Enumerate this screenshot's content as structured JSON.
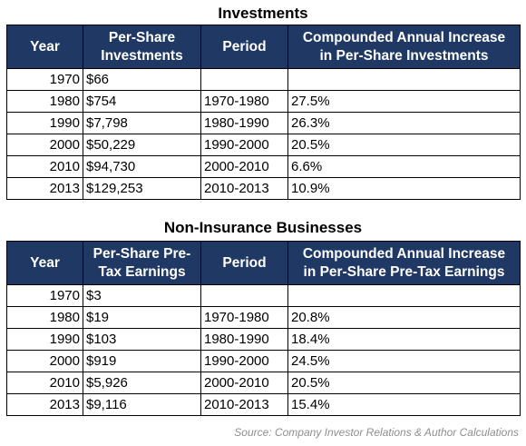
{
  "tables": [
    {
      "title": "Investments",
      "headers": {
        "year": "Year",
        "value_line1": "Per-Share",
        "value_line2": "Investments",
        "period": "Period",
        "rate_line1": "Compounded Annual Increase",
        "rate_line2": "in Per-Share Investments"
      },
      "rows": [
        {
          "year": "1970",
          "value": "$66",
          "period": "",
          "rate": ""
        },
        {
          "year": "1980",
          "value": "$754",
          "period": "1970-1980",
          "rate": "27.5%"
        },
        {
          "year": "1990",
          "value": "$7,798",
          "period": "1980-1990",
          "rate": "26.3%"
        },
        {
          "year": "2000",
          "value": "$50,229",
          "period": "1990-2000",
          "rate": "20.5%"
        },
        {
          "year": "2010",
          "value": "$94,730",
          "period": "2000-2010",
          "rate": "6.6%"
        },
        {
          "year": "2013",
          "value": "$129,253",
          "period": "2010-2013",
          "rate": "10.9%"
        }
      ]
    },
    {
      "title": "Non-Insurance Businesses",
      "headers": {
        "year": "Year",
        "value_line1": "Per-Share Pre-",
        "value_line2": "Tax Earnings",
        "period": "Period",
        "rate_line1": "Compounded Annual Increase",
        "rate_line2": "in Per-Share Pre-Tax Earnings"
      },
      "rows": [
        {
          "year": "1970",
          "value": "$3",
          "period": "",
          "rate": ""
        },
        {
          "year": "1980",
          "value": "$19",
          "period": "1970-1980",
          "rate": "20.8%"
        },
        {
          "year": "1990",
          "value": "$103",
          "period": "1980-1990",
          "rate": "18.4%"
        },
        {
          "year": "2000",
          "value": "$919",
          "period": "1990-2000",
          "rate": "24.5%"
        },
        {
          "year": "2010",
          "value": "$5,926",
          "period": "2000-2010",
          "rate": "20.5%"
        },
        {
          "year": "2013",
          "value": "$9,116",
          "period": "2010-2013",
          "rate": "15.4%"
        }
      ]
    }
  ],
  "source": "Source: Company Investor Relations & Author Calculations",
  "colors": {
    "header_bg": "#1f3864",
    "header_text": "#ffffff",
    "source_text": "#8e8e8e"
  }
}
